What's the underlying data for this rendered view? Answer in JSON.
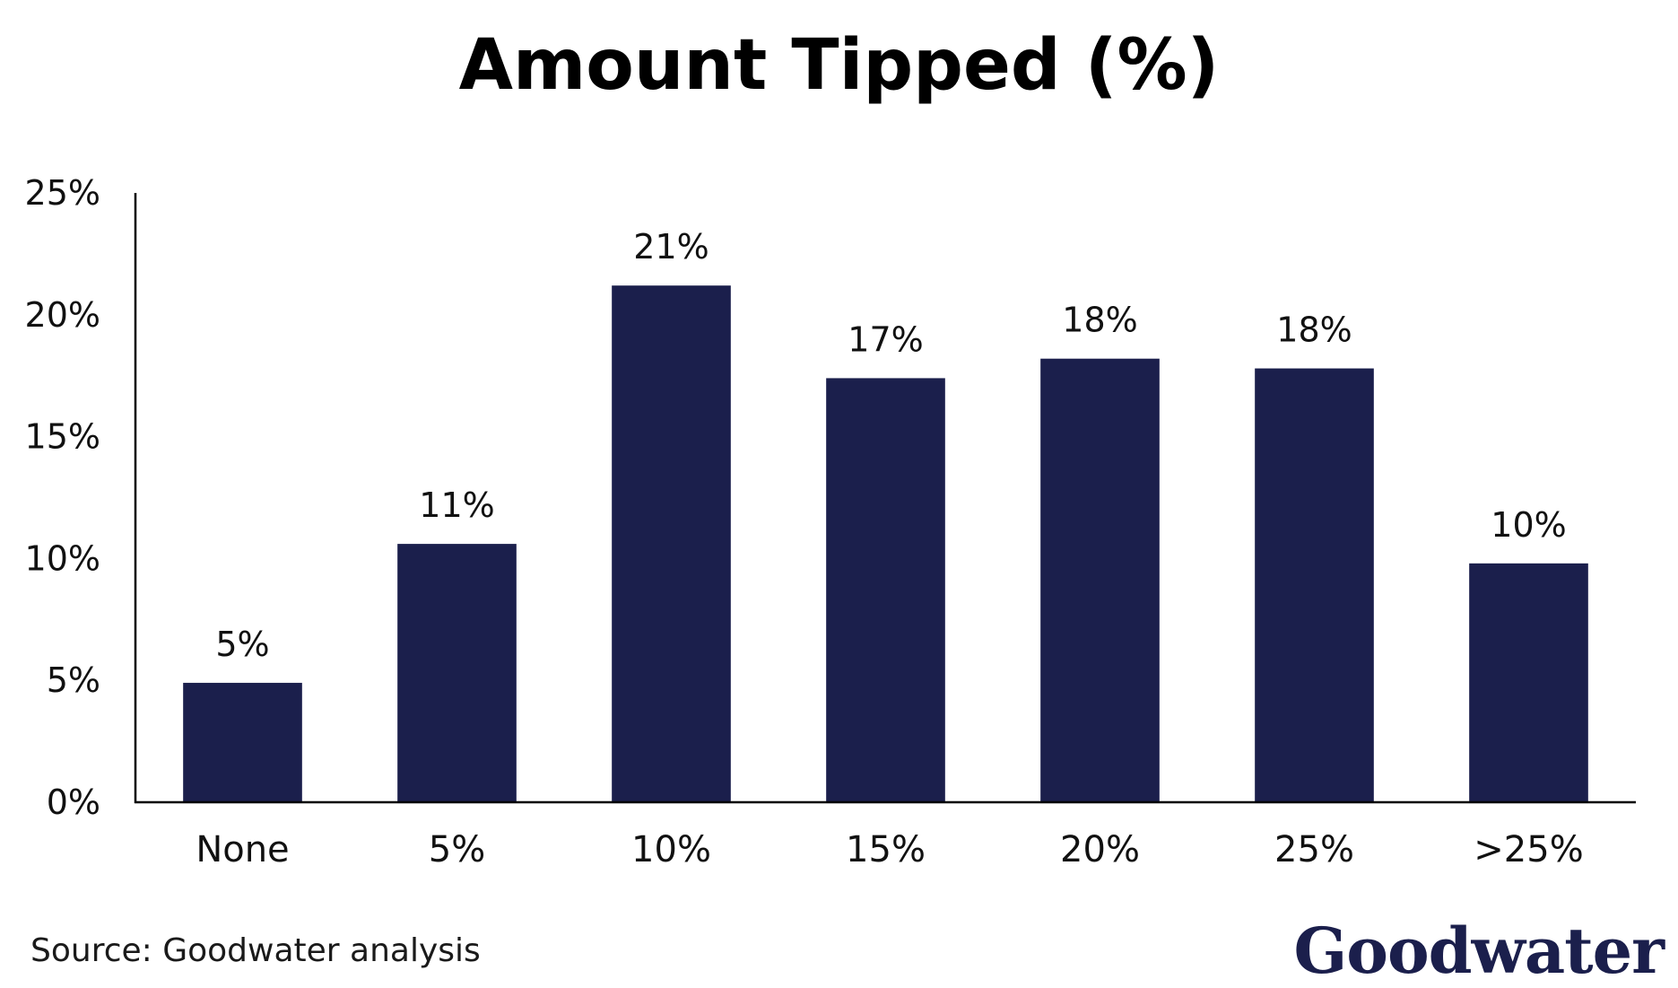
{
  "colors": {
    "bar": "#1b1f4c",
    "brand": "#1b1f4c",
    "axis": "#000000"
  },
  "chart_data": {
    "type": "bar",
    "title": "Amount Tipped (%)",
    "xlabel": "",
    "ylabel": "",
    "categories": [
      "None",
      "5%",
      "10%",
      "15%",
      "20%",
      "25%",
      ">25%"
    ],
    "values": [
      4.9,
      10.6,
      21.2,
      17.4,
      18.2,
      17.8,
      9.8
    ],
    "data_labels": [
      "5%",
      "11%",
      "21%",
      "17%",
      "18%",
      "18%",
      "10%"
    ],
    "ylim": [
      0,
      25
    ],
    "yticks": [
      0,
      5,
      10,
      15,
      20,
      25
    ],
    "ytick_labels": [
      "0%",
      "5%",
      "10%",
      "15%",
      "20%",
      "25%"
    ],
    "grid": false,
    "legend": "none"
  },
  "footer": {
    "source": "Source: Goodwater analysis",
    "logo_text": "Goodwater",
    "logo_icon": "goodwater-wordmark"
  }
}
